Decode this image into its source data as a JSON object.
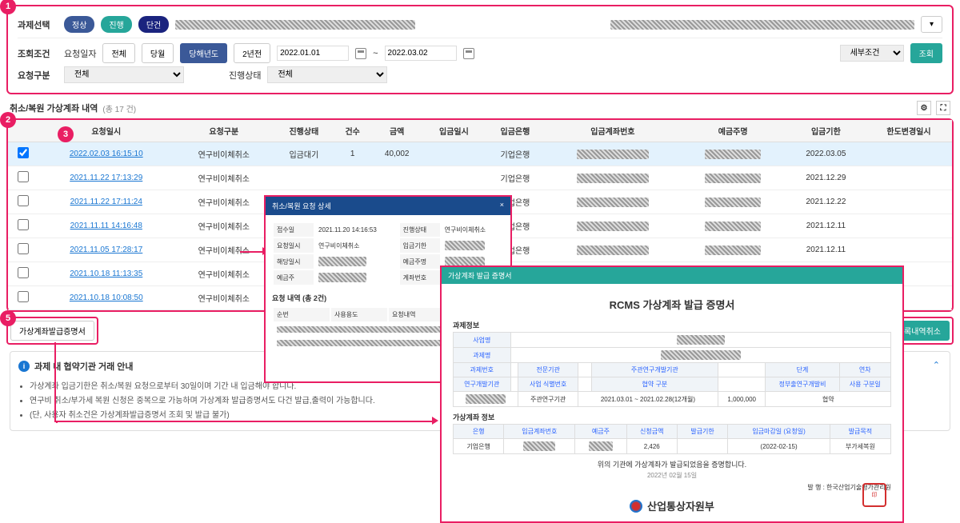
{
  "markers": [
    "1",
    "2",
    "3",
    "4",
    "5"
  ],
  "filter": {
    "task_select_label": "과제선택",
    "pills": [
      "정상",
      "진행",
      "단건"
    ],
    "cond_label": "조회조건",
    "req_date_label": "요청일자",
    "period_btns": [
      "전체",
      "당월",
      "당해년도",
      "2년전"
    ],
    "period_active": 2,
    "date_from": "2022.01.01",
    "date_to": "2022.03.02",
    "detail_cond": "세부조건",
    "search": "조회",
    "req_type_label": "요청구분",
    "req_type_val": "전체",
    "status_label": "진행상태",
    "status_val": "전체"
  },
  "table": {
    "title": "취소/복원 가상계좌 내역",
    "count_label": "(총 17 건)",
    "columns": [
      "",
      "요청일시",
      "요청구분",
      "진행상태",
      "건수",
      "금액",
      "입금일시",
      "입금은행",
      "입금계좌번호",
      "예금주명",
      "입금기한",
      "한도변경일시"
    ],
    "rows": [
      {
        "sel": true,
        "dt": "2022.02.03 16:15:10",
        "type": "연구비이체취소",
        "status": "입금대기",
        "cnt": "1",
        "amt": "40,002",
        "bank": "기업은행",
        "due": "2022.03.05"
      },
      {
        "dt": "2021.11.22 17:13:29",
        "type": "연구비이체취소",
        "bank": "기업은행",
        "due": "2021.12.29"
      },
      {
        "dt": "2021.11.22 17:11:24",
        "type": "연구비이체취소",
        "bank": "기업은행",
        "due": "2021.12.22"
      },
      {
        "dt": "2021.11.11 14:16:48",
        "type": "연구비이체취소",
        "bank": "기업은행",
        "due": "2021.12.11"
      },
      {
        "dt": "2021.11.05 17:28:17",
        "type": "연구비이체취소",
        "bank": "기업은행",
        "due": "2021.12.11"
      },
      {
        "dt": "2021.10.18 11:13:35",
        "type": "연구비이체취소",
        "due": "2021.11.18"
      },
      {
        "dt": "2021.10.18 10:08:50",
        "type": "연구비이체취소",
        "due": "2021.11.17"
      }
    ]
  },
  "cert_btn": "가상계좌발급증명서",
  "cancel_btn": "등록내역취소",
  "info": {
    "title": "과제 내 협약기관 거래 안내",
    "items": [
      "가상계좌 입금기한은 취소/복원 요청으로부터 30일이며 기간 내 입금해야 합니다.",
      "연구비 취소/부가세 복원 신청은 중복으로 가능하며 가상계좌 발급증명서도 다건 발급,출력이 가능합니다.",
      "(단, 사용자 취소건은 가상계좌발급증명서 조회 및 발급 불가)"
    ]
  },
  "modal1": {
    "title": "취소/복원 요청 상세",
    "labels": [
      "접수일",
      "요청일시",
      "진행상태",
      "입금기한",
      "해당일시",
      "예금주명",
      "입금은행",
      "입금계좌",
      "예금주",
      "계좌번호"
    ],
    "dt": "2021.11.20 14:16:53",
    "type": "연구비이체취소",
    "list_title": "요청 내역 (총 2건)",
    "list_cols": [
      "순번",
      "사용용도",
      "요청내역",
      "취소사유"
    ]
  },
  "modal2": {
    "header": "가상계좌 발급 증명서",
    "title": "RCMS 가상계좌 발급 증명서",
    "sec1": "과제정보",
    "task_labels": [
      "사업명",
      "과제명",
      "과제번호",
      "전문기관",
      "주관연구개발기관",
      "단계",
      "연차",
      "연구개발기관",
      "사업 식별번호",
      "협약 구분",
      "정부출연구개발비",
      "사용 구분일"
    ],
    "period": "2021.03.01 ~ 2021.02.28(12개월)",
    "amount": "1,000,000",
    "type": "협약",
    "inst": "주관연구기관",
    "sec2": "가상계좌 정보",
    "acc_labels": [
      "은행",
      "입금계좌번호",
      "예금주",
      "신청금액",
      "발급기한",
      "입금마감일\n(요청일)",
      "발급목적"
    ],
    "bank": "기업은행",
    "amt": "2,426",
    "reason": "부가세복원",
    "close": "(2022-02-15)",
    "note": "위의 기관에 가상계좌가 발급되었음을 증명합니다.",
    "date": "2022년 02월 15일",
    "issuer": "발 행 : 한국산업기술평가관리원",
    "ministry": "산업통상자원부"
  }
}
